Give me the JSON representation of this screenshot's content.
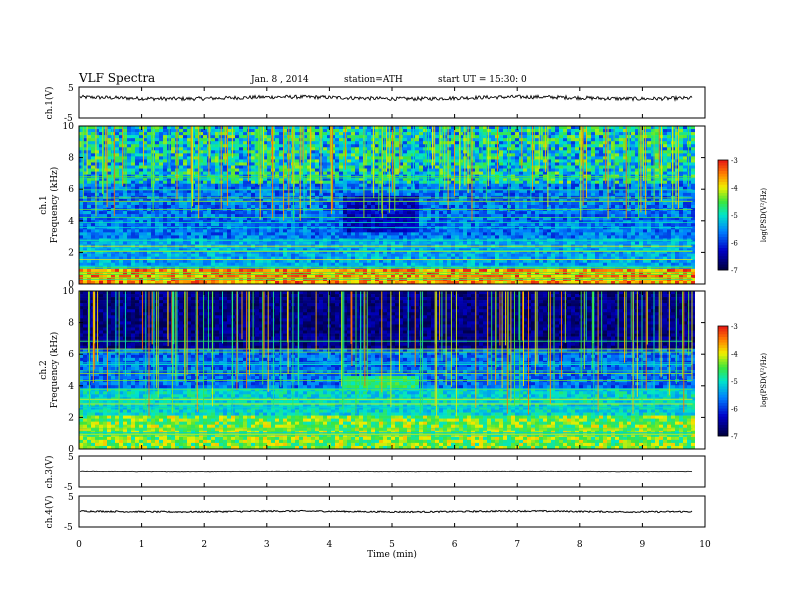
{
  "header": {
    "title": "VLF Spectra",
    "date": "Jan. 8 , 2014",
    "station": "station=ATH",
    "start": "start  UT =   15:30: 0"
  },
  "chart_data": [
    {
      "type": "line",
      "name": "ch1",
      "ylabel": "ch.1(V)",
      "ylim": [
        -5,
        5
      ],
      "yticks": [
        "5",
        "-5"
      ],
      "xlim": [
        0,
        10
      ],
      "baseline": 1.5,
      "noise": 1.2
    },
    {
      "type": "heatmap",
      "name": "ch1-spectrogram",
      "ylabel_top": "ch.1",
      "ylabel": "Frequency  (kHz)",
      "xlim": [
        0,
        10
      ],
      "ylim": [
        0,
        10
      ],
      "yticks": [
        "0",
        "2",
        "4",
        "6",
        "8",
        "10"
      ],
      "data_end_min": 9.8,
      "colorbar": {
        "label": "log(PSD(V²/Hz)",
        "ticks": [
          "-3",
          "-4",
          "-5",
          "-6",
          "-7"
        ],
        "range": [
          -7,
          -3
        ]
      }
    },
    {
      "type": "heatmap",
      "name": "ch2-spectrogram",
      "ylabel_top": "ch.2",
      "ylabel": "Frequency  (kHz)",
      "xlim": [
        0,
        10
      ],
      "ylim": [
        0,
        10
      ],
      "yticks": [
        "0",
        "2",
        "4",
        "6",
        "8",
        "10"
      ],
      "data_end_min": 9.8,
      "colorbar": {
        "label": "log(PSD(V²/Hz)",
        "ticks": [
          "-3",
          "-4",
          "-5",
          "-6",
          "-7"
        ],
        "range": [
          -7,
          -3
        ]
      }
    },
    {
      "type": "line",
      "name": "ch3",
      "ylabel": "ch.3(V)",
      "ylim": [
        -5,
        5
      ],
      "yticks": [
        "5",
        "-5"
      ],
      "xlim": [
        0,
        10
      ],
      "baseline": 0,
      "noise": 0.15
    },
    {
      "type": "line",
      "name": "ch4",
      "ylabel": "ch.4(V)",
      "ylim": [
        -5,
        5
      ],
      "yticks": [
        "5",
        "-5"
      ],
      "xlim": [
        0,
        10
      ],
      "baseline": 0,
      "noise": 0.5
    }
  ],
  "xaxis": {
    "label": "Time  (min)",
    "ticks": [
      "0",
      "1",
      "2",
      "3",
      "4",
      "5",
      "6",
      "7",
      "8",
      "9",
      "10"
    ]
  }
}
